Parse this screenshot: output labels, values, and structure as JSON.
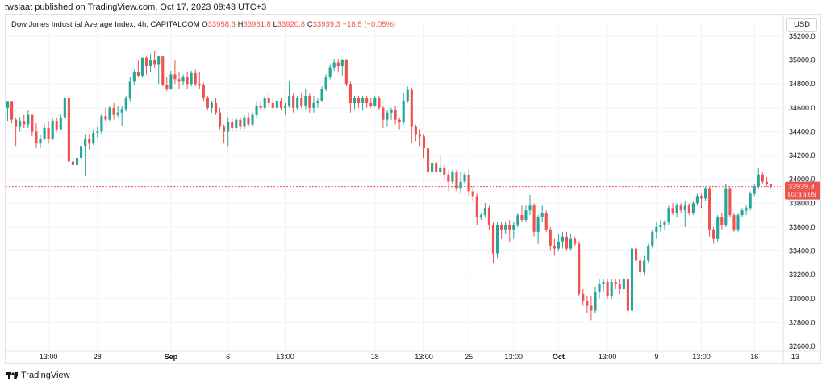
{
  "header": {
    "caption": "twslaat published on TradingView.com, Oct 17, 2023 09:43 UTC+3"
  },
  "legend": {
    "symbol": "Dow Jones Industrial Average Index, 4h, CAPITALCOM",
    "o_label": "O",
    "o_value": "33958.3",
    "h_label": "H",
    "h_value": "33961.8",
    "l_label": "L",
    "l_value": "33920.8",
    "c_label": "C",
    "c_value": "33939.3",
    "change": "−18.5 (−0.05%)"
  },
  "currency_button": "USD",
  "price_tag": {
    "price": "33939.3",
    "countdown": "03:16:09"
  },
  "footer": {
    "brand": "TradingView",
    "logo_icon": "tradingview-logo-icon"
  },
  "colors": {
    "up": "#26a69a",
    "down": "#ef5350",
    "grid": "#f0f3fa",
    "last_price_line": "#ef5350"
  },
  "chart_data": {
    "type": "candlestick",
    "ylim": [
      32600,
      35300
    ],
    "y_ticks": [
      35200,
      35000,
      34800,
      34600,
      34400,
      34200,
      34000,
      33800,
      33600,
      33400,
      33200,
      33000,
      32800,
      32600
    ],
    "y_tick_labels": [
      "35200.0",
      "35000.0",
      "34800.0",
      "34600.0",
      "34400.0",
      "34200.0",
      "34000.0",
      "33800.0",
      "33600.0",
      "33400.0",
      "33200.0",
      "33000.0",
      "32800.0",
      "32600.0"
    ],
    "x_ticks": [
      {
        "label": "13:00",
        "i": 10
      },
      {
        "label": "28",
        "i": 22
      },
      {
        "label": "Sep",
        "i": 40
      },
      {
        "label": "6",
        "i": 54
      },
      {
        "label": "13:00",
        "i": 68
      },
      {
        "label": "18",
        "i": 90
      },
      {
        "label": "13:00",
        "i": 102
      },
      {
        "label": "25",
        "i": 113
      },
      {
        "label": "13:00",
        "i": 124
      },
      {
        "label": "Oct",
        "i": 135
      },
      {
        "label": "13:00",
        "i": 147
      },
      {
        "label": "9",
        "i": 159
      },
      {
        "label": "13:00",
        "i": 170
      },
      {
        "label": "16",
        "i": 183
      },
      {
        "label": "13",
        "i": 193
      }
    ],
    "last_price": 33939.3,
    "candles": [
      [
        34600,
        34660,
        34490,
        34650
      ],
      [
        34650,
        34660,
        34470,
        34500
      ],
      [
        34500,
        34520,
        34280,
        34440
      ],
      [
        34440,
        34520,
        34400,
        34490
      ],
      [
        34490,
        34540,
        34430,
        34460
      ],
      [
        34460,
        34580,
        34430,
        34540
      ],
      [
        34540,
        34550,
        34360,
        34400
      ],
      [
        34400,
        34470,
        34260,
        34300
      ],
      [
        34300,
        34370,
        34260,
        34340
      ],
      [
        34340,
        34460,
        34330,
        34430
      ],
      [
        34430,
        34490,
        34300,
        34340
      ],
      [
        34340,
        34510,
        34330,
        34490
      ],
      [
        34490,
        34520,
        34400,
        34420
      ],
      [
        34420,
        34540,
        34410,
        34520
      ],
      [
        34520,
        34700,
        34510,
        34680
      ],
      [
        34680,
        34700,
        34080,
        34150
      ],
      [
        34150,
        34200,
        34060,
        34120
      ],
      [
        34120,
        34220,
        34100,
        34180
      ],
      [
        34180,
        34320,
        34150,
        34280
      ],
      [
        34280,
        34380,
        34030,
        34340
      ],
      [
        34340,
        34380,
        34250,
        34300
      ],
      [
        34300,
        34420,
        34290,
        34390
      ],
      [
        34390,
        34440,
        34350,
        34400
      ],
      [
        34400,
        34550,
        34380,
        34530
      ],
      [
        34530,
        34600,
        34480,
        34500
      ],
      [
        34500,
        34620,
        34490,
        34600
      ],
      [
        34600,
        34640,
        34500,
        34540
      ],
      [
        34540,
        34620,
        34520,
        34560
      ],
      [
        34560,
        34620,
        34450,
        34590
      ],
      [
        34590,
        34700,
        34570,
        34680
      ],
      [
        34680,
        34860,
        34650,
        34820
      ],
      [
        34820,
        34920,
        34790,
        34900
      ],
      [
        34900,
        35000,
        34860,
        34870
      ],
      [
        34870,
        35020,
        34850,
        35020
      ],
      [
        35020,
        35030,
        34880,
        34950
      ],
      [
        34950,
        35050,
        34900,
        35000
      ],
      [
        35000,
        35080,
        34930,
        34960
      ],
      [
        34960,
        35040,
        34800,
        35030
      ],
      [
        35030,
        35040,
        34780,
        34790
      ],
      [
        34790,
        34860,
        34740,
        34760
      ],
      [
        34760,
        34910,
        34750,
        34880
      ],
      [
        34880,
        35000,
        34800,
        34840
      ],
      [
        34840,
        34900,
        34760,
        34820
      ],
      [
        34820,
        34880,
        34790,
        34860
      ],
      [
        34860,
        34900,
        34760,
        34800
      ],
      [
        34800,
        34910,
        34780,
        34890
      ],
      [
        34890,
        34920,
        34780,
        34800
      ],
      [
        34800,
        34900,
        34760,
        34790
      ],
      [
        34790,
        34810,
        34660,
        34680
      ],
      [
        34680,
        34700,
        34580,
        34600
      ],
      [
        34600,
        34660,
        34560,
        34640
      ],
      [
        34640,
        34680,
        34540,
        34560
      ],
      [
        34560,
        34600,
        34420,
        34440
      ],
      [
        34440,
        34460,
        34300,
        34400
      ],
      [
        34400,
        34520,
        34280,
        34480
      ],
      [
        34480,
        34520,
        34400,
        34430
      ],
      [
        34430,
        34520,
        34400,
        34500
      ],
      [
        34500,
        34520,
        34420,
        34440
      ],
      [
        34440,
        34540,
        34420,
        34520
      ],
      [
        34520,
        34560,
        34440,
        34460
      ],
      [
        34460,
        34560,
        34440,
        34540
      ],
      [
        34540,
        34650,
        34520,
        34620
      ],
      [
        34620,
        34650,
        34580,
        34600
      ],
      [
        34600,
        34700,
        34580,
        34680
      ],
      [
        34680,
        34720,
        34610,
        34640
      ],
      [
        34640,
        34680,
        34560,
        34600
      ],
      [
        34600,
        34680,
        34590,
        34660
      ],
      [
        34660,
        34680,
        34580,
        34600
      ],
      [
        34600,
        34640,
        34540,
        34620
      ],
      [
        34620,
        34820,
        34600,
        34700
      ],
      [
        34700,
        34720,
        34560,
        34600
      ],
      [
        34600,
        34700,
        34580,
        34680
      ],
      [
        34680,
        34720,
        34600,
        34620
      ],
      [
        34620,
        34760,
        34590,
        34700
      ],
      [
        34700,
        34720,
        34560,
        34600
      ],
      [
        34600,
        34700,
        34560,
        34640
      ],
      [
        34640,
        34680,
        34600,
        34660
      ],
      [
        34660,
        34780,
        34650,
        34760
      ],
      [
        34760,
        34880,
        34740,
        34860
      ],
      [
        34860,
        34960,
        34840,
        34940
      ],
      [
        34940,
        35010,
        34910,
        34980
      ],
      [
        34980,
        35010,
        34900,
        34950
      ],
      [
        34950,
        35010,
        34870,
        35000
      ],
      [
        35000,
        35010,
        34780,
        34800
      ],
      [
        34800,
        34820,
        34560,
        34640
      ],
      [
        34640,
        34700,
        34590,
        34680
      ],
      [
        34680,
        34700,
        34600,
        34640
      ],
      [
        34640,
        34700,
        34580,
        34680
      ],
      [
        34680,
        34700,
        34600,
        34640
      ],
      [
        34640,
        34680,
        34600,
        34620
      ],
      [
        34620,
        34700,
        34610,
        34680
      ],
      [
        34680,
        34700,
        34580,
        34600
      ],
      [
        34600,
        34620,
        34430,
        34500
      ],
      [
        34500,
        34580,
        34440,
        34560
      ],
      [
        34560,
        34600,
        34500,
        34580
      ],
      [
        34580,
        34620,
        34460,
        34500
      ],
      [
        34500,
        34520,
        34420,
        34480
      ],
      [
        34480,
        34720,
        34460,
        34660
      ],
      [
        34660,
        34780,
        34640,
        34750
      ],
      [
        34750,
        34770,
        34300,
        34440
      ],
      [
        34440,
        34460,
        34320,
        34380
      ],
      [
        34380,
        34420,
        34280,
        34360
      ],
      [
        34360,
        34380,
        34180,
        34260
      ],
      [
        34260,
        34280,
        34040,
        34060
      ],
      [
        34060,
        34160,
        34040,
        34140
      ],
      [
        34140,
        34160,
        34040,
        34060
      ],
      [
        34060,
        34200,
        34040,
        34100
      ],
      [
        34100,
        34120,
        34000,
        34040
      ],
      [
        34040,
        34080,
        33900,
        33980
      ],
      [
        33980,
        34080,
        33960,
        34060
      ],
      [
        34060,
        34080,
        33900,
        33920
      ],
      [
        33920,
        34060,
        33880,
        33980
      ],
      [
        33980,
        34060,
        33960,
        34040
      ],
      [
        34040,
        34080,
        33860,
        33900
      ],
      [
        33900,
        33940,
        33820,
        33860
      ],
      [
        33860,
        33880,
        33620,
        33680
      ],
      [
        33680,
        33720,
        33660,
        33700
      ],
      [
        33700,
        33800,
        33680,
        33760
      ],
      [
        33760,
        33780,
        33580,
        33620
      ],
      [
        33620,
        33640,
        33300,
        33380
      ],
      [
        33380,
        33640,
        33340,
        33620
      ],
      [
        33620,
        33640,
        33500,
        33580
      ],
      [
        33580,
        33640,
        33540,
        33620
      ],
      [
        33620,
        33660,
        33470,
        33580
      ],
      [
        33580,
        33640,
        33500,
        33620
      ],
      [
        33620,
        33720,
        33600,
        33700
      ],
      [
        33700,
        33780,
        33640,
        33660
      ],
      [
        33660,
        33780,
        33640,
        33740
      ],
      [
        33740,
        33870,
        33700,
        33780
      ],
      [
        33780,
        33800,
        33520,
        33560
      ],
      [
        33560,
        33700,
        33460,
        33680
      ],
      [
        33680,
        33780,
        33640,
        33720
      ],
      [
        33720,
        33740,
        33560,
        33580
      ],
      [
        33580,
        33600,
        33400,
        33440
      ],
      [
        33440,
        33500,
        33360,
        33420
      ],
      [
        33420,
        33540,
        33400,
        33480
      ],
      [
        33480,
        33560,
        33420,
        33520
      ],
      [
        33520,
        33560,
        33400,
        33420
      ],
      [
        33420,
        33540,
        33400,
        33500
      ],
      [
        33500,
        33520,
        33440,
        33460
      ],
      [
        33460,
        33480,
        33020,
        33040
      ],
      [
        33040,
        33080,
        32940,
        32980
      ],
      [
        32980,
        33020,
        32880,
        32940
      ],
      [
        32940,
        33020,
        32820,
        32900
      ],
      [
        32900,
        33100,
        32880,
        33060
      ],
      [
        33060,
        33160,
        33000,
        33120
      ],
      [
        33120,
        33160,
        33060,
        33140
      ],
      [
        33140,
        33160,
        33000,
        33020
      ],
      [
        33020,
        33160,
        33000,
        33140
      ],
      [
        33140,
        33160,
        33080,
        33120
      ],
      [
        33120,
        33160,
        33040,
        33080
      ],
      [
        33080,
        33180,
        33040,
        33160
      ],
      [
        33160,
        33180,
        32840,
        32900
      ],
      [
        32900,
        33460,
        32880,
        33420
      ],
      [
        33420,
        33480,
        33300,
        33320
      ],
      [
        33320,
        33360,
        33180,
        33220
      ],
      [
        33220,
        33360,
        33200,
        33320
      ],
      [
        33320,
        33460,
        33300,
        33440
      ],
      [
        33440,
        33580,
        33420,
        33560
      ],
      [
        33560,
        33640,
        33500,
        33600
      ],
      [
        33600,
        33660,
        33560,
        33620
      ],
      [
        33620,
        33660,
        33580,
        33640
      ],
      [
        33640,
        33780,
        33620,
        33760
      ],
      [
        33760,
        33800,
        33700,
        33720
      ],
      [
        33720,
        33800,
        33680,
        33780
      ],
      [
        33780,
        33800,
        33720,
        33740
      ],
      [
        33740,
        33820,
        33600,
        33780
      ],
      [
        33780,
        33800,
        33700,
        33720
      ],
      [
        33720,
        33820,
        33700,
        33800
      ],
      [
        33800,
        33880,
        33780,
        33860
      ],
      [
        33860,
        33880,
        33760,
        33840
      ],
      [
        33840,
        33940,
        33820,
        33920
      ],
      [
        33920,
        33940,
        33520,
        33580
      ],
      [
        33580,
        33600,
        33460,
        33500
      ],
      [
        33500,
        33700,
        33480,
        33680
      ],
      [
        33680,
        33720,
        33580,
        33620
      ],
      [
        33620,
        33960,
        33600,
        33920
      ],
      [
        33920,
        33940,
        33680,
        33700
      ],
      [
        33700,
        33720,
        33560,
        33580
      ],
      [
        33580,
        33720,
        33560,
        33700
      ],
      [
        33700,
        33760,
        33680,
        33740
      ],
      [
        33740,
        33780,
        33700,
        33760
      ],
      [
        33760,
        33900,
        33740,
        33880
      ],
      [
        33880,
        33960,
        33860,
        33940
      ],
      [
        33940,
        34100,
        33920,
        34040
      ],
      [
        34040,
        34060,
        33960,
        33980
      ],
      [
        33980,
        34020,
        33940,
        33958
      ],
      [
        33958.3,
        33961.8,
        33920.8,
        33939.3
      ]
    ]
  }
}
